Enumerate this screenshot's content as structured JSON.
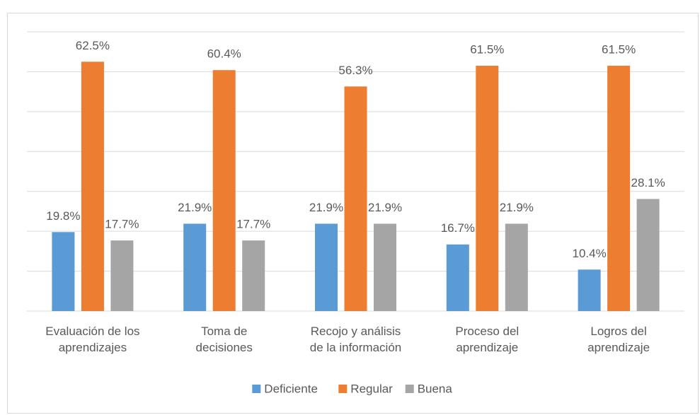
{
  "chart_data": {
    "type": "bar",
    "categories": [
      "Evaluación de los\naprendizajes",
      "Toma de\ndecisiones",
      "Recojo y análisis\nde la información",
      "Proceso del\naprendizaje",
      "Logros del\naprendizaje"
    ],
    "series": [
      {
        "name": "Deficiente",
        "color": "#5b9bd5",
        "values": [
          19.8,
          21.9,
          21.9,
          16.7,
          10.4
        ],
        "value_labels": [
          "19.8%",
          "21.9%",
          "21.9%",
          "16.7%",
          "10.4%"
        ]
      },
      {
        "name": "Regular",
        "color": "#ed7d31",
        "values": [
          62.5,
          60.4,
          56.3,
          61.5,
          61.5
        ],
        "value_labels": [
          "62.5%",
          "60.4%",
          "56.3%",
          "61.5%",
          "61.5%"
        ]
      },
      {
        "name": "Buena",
        "color": "#a5a5a5",
        "values": [
          17.7,
          17.7,
          21.9,
          21.9,
          28.1
        ],
        "value_labels": [
          "17.7%",
          "17.7%",
          "21.9%",
          "21.9%",
          "28.1%"
        ]
      }
    ],
    "ylim": [
      0,
      70
    ],
    "yticks": [
      0,
      10,
      20,
      30,
      40,
      50,
      60,
      70
    ],
    "grid": true,
    "legend": "bottom"
  }
}
